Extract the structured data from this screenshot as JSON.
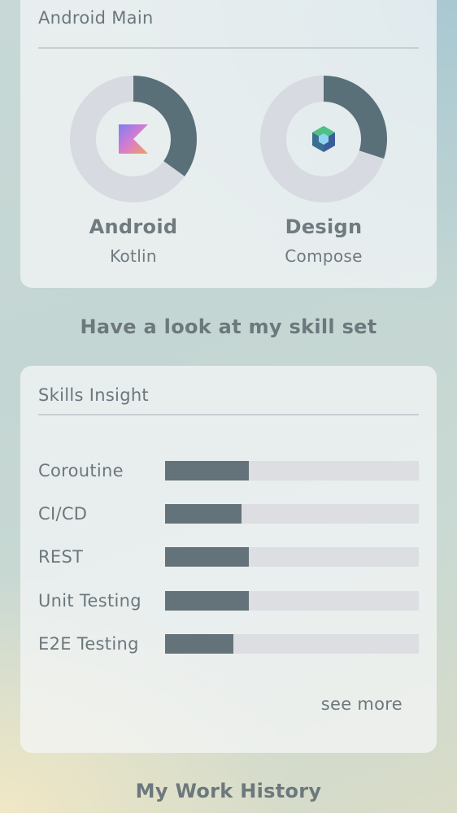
{
  "main_card": {
    "title": "Android Main",
    "donuts": [
      {
        "title": "Android",
        "subtitle": "Kotlin",
        "icon": "kotlin-logo-icon",
        "progress": 0.35
      },
      {
        "title": "Design",
        "subtitle": "Compose",
        "icon": "compose-logo-icon",
        "progress": 0.3
      }
    ]
  },
  "skills_heading": "Have a look at my skill set",
  "skills_card": {
    "title": "Skills Insight",
    "skills": [
      {
        "label": "Coroutine",
        "progress": 0.33
      },
      {
        "label": "CI/CD",
        "progress": 0.3
      },
      {
        "label": "REST",
        "progress": 0.33
      },
      {
        "label": "Unit Testing",
        "progress": 0.33
      },
      {
        "label": "E2E Testing",
        "progress": 0.27
      }
    ],
    "see_more_label": "see more"
  },
  "work_history_heading": "My Work History",
  "colors": {
    "donut_fill": "#5a7078",
    "donut_track": "#d7dbe1",
    "bar_fill": "#637379",
    "bar_track": "#dcdee2"
  }
}
